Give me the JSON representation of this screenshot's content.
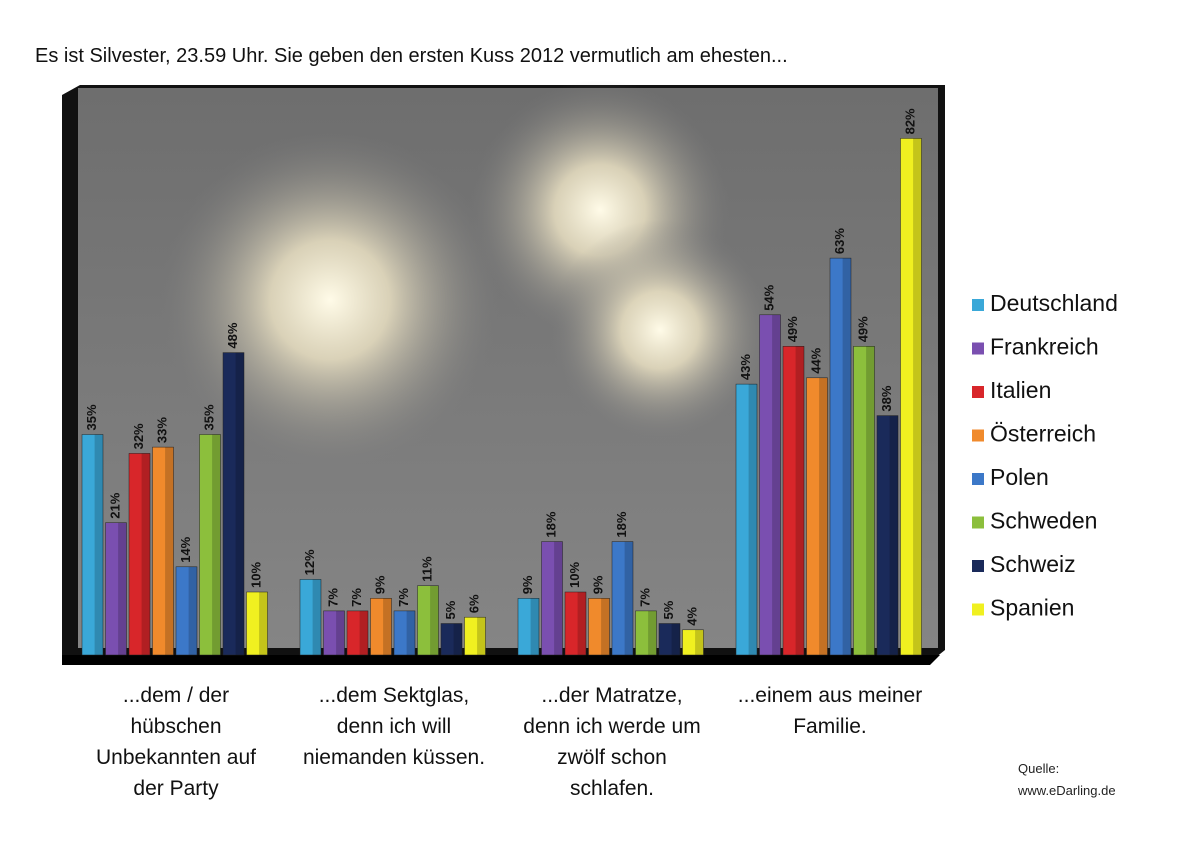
{
  "chart_data": {
    "type": "bar",
    "title": "Es ist Silvester, 23.59 Uhr. Sie geben den ersten Kuss 2012 vermutlich am ehesten...",
    "categories": [
      "...dem / der hübschen Unbekannten auf der Party",
      "...dem Sektglas, denn ich will niemanden küssen.",
      "...der Matratze, denn ich werde um zwölf schon schlafen.",
      "...einem aus meiner Familie."
    ],
    "series": [
      {
        "name": "Deutschland",
        "color": "#3aa8d8",
        "values": [
          35,
          12,
          9,
          43
        ],
        "value_labels": [
          "35%",
          "12%",
          "9%",
          "43%"
        ]
      },
      {
        "name": "Frankreich",
        "color": "#7a4fb0",
        "values": [
          21,
          7,
          18,
          54
        ],
        "value_labels": [
          "21%",
          "7%",
          "18%",
          "54%"
        ]
      },
      {
        "name": "Italien",
        "color": "#d8262a",
        "values": [
          32,
          7,
          10,
          49
        ],
        "value_labels": [
          "32%",
          "7%",
          "10%",
          "49%"
        ]
      },
      {
        "name": "Österreich",
        "color": "#f08a2c",
        "values": [
          33,
          9,
          9,
          44
        ],
        "value_labels": [
          "33%",
          "9%",
          "9%",
          "44%"
        ]
      },
      {
        "name": "Polen",
        "color": "#3c78c8",
        "values": [
          14,
          7,
          18,
          63
        ],
        "value_labels": [
          "14%",
          "7%",
          "18%",
          "63%"
        ]
      },
      {
        "name": "Schweden",
        "color": "#8cbf3c",
        "values": [
          35,
          11,
          7,
          49
        ],
        "value_labels": [
          "35%",
          "11%",
          "7%",
          "49%"
        ]
      },
      {
        "name": "Schweiz",
        "color": "#1a2a5a",
        "values": [
          48,
          5,
          5,
          38
        ],
        "value_labels": [
          "48%",
          "5%",
          "5%",
          "38%"
        ]
      },
      {
        "name": "Spanien",
        "color": "#f0f020",
        "values": [
          10,
          6,
          4,
          82
        ],
        "value_labels": [
          "10%",
          "6%",
          "4%",
          "82%"
        ]
      }
    ],
    "source": [
      "Quelle:",
      "www.eDarling.de"
    ]
  }
}
